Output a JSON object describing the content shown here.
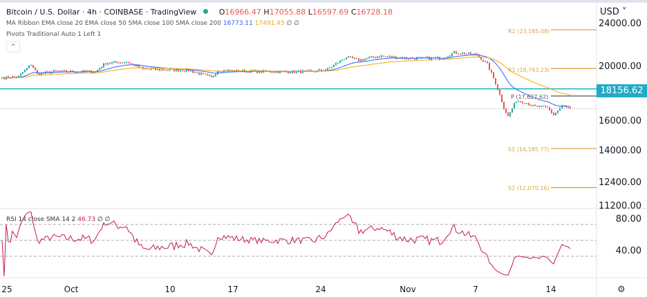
{
  "header": {
    "symbol_title": "Bitcoin / U.S. Dollar · 4h · COINBASE · TradingView",
    "ohlc": {
      "o_label": "O",
      "o": "16966.47",
      "h_label": "H",
      "h": "17055.88",
      "l_label": "L",
      "l": "16597.69",
      "c_label": "C",
      "c": "16728.18"
    },
    "ma_ribbon": {
      "label": "MA Ribbon EMA close 20 EMA close 50 SMA close 100 SMA close 200",
      "v1": "16773.11",
      "v2": "17491.45",
      "v3": "∅",
      "v4": "∅"
    },
    "pivots_label": "Pivots Traditional Auto 1 Left 1",
    "collapse_icon": "chevron-up-icon"
  },
  "price_axis": {
    "currency": "USD",
    "ticks": [
      "24000.00",
      "20000.00",
      "16000.00",
      "14000.00",
      "12400.00",
      "11200.00"
    ],
    "scale": "log",
    "line_price_label": "18156.62"
  },
  "pivots": {
    "r2": "R2 (23,185.08)",
    "r1": "R1 (19,743.23)",
    "p": "P (17,627.62)",
    "s1": "S1 (14,185.77)",
    "s2": "S2 (12,070.16)"
  },
  "rsi": {
    "label": "RSI 14 close SMA 14 2",
    "value": "46.73",
    "v2": "∅",
    "v3": "∅",
    "ticks": [
      "80.00",
      "40.00"
    ]
  },
  "time_axis": {
    "labels": [
      "25",
      "Oct",
      "10",
      "17",
      "24",
      "Nov",
      "7",
      "14"
    ]
  },
  "chart_data": {
    "type": "candlestick",
    "timeframe": "4h",
    "approx_close_path": [
      {
        "candle": 0,
        "price": 19000
      },
      {
        "candle": 8,
        "price": 19100
      },
      {
        "candle": 14,
        "price": 20100
      },
      {
        "candle": 17,
        "price": 19300
      },
      {
        "candle": 25,
        "price": 19500
      },
      {
        "candle": 45,
        "price": 19500
      },
      {
        "candle": 50,
        "price": 20200
      },
      {
        "candle": 60,
        "price": 20300
      },
      {
        "candle": 68,
        "price": 19700
      },
      {
        "candle": 90,
        "price": 19600
      },
      {
        "candle": 99,
        "price": 19150
      },
      {
        "candle": 101,
        "price": 19000
      },
      {
        "candle": 104,
        "price": 19600
      },
      {
        "candle": 125,
        "price": 19500
      },
      {
        "candle": 150,
        "price": 19500
      },
      {
        "candle": 157,
        "price": 19700
      },
      {
        "candle": 166,
        "price": 20700
      },
      {
        "candle": 172,
        "price": 20450
      },
      {
        "candle": 182,
        "price": 20800
      },
      {
        "candle": 195,
        "price": 20600
      },
      {
        "candle": 212,
        "price": 20600
      },
      {
        "candle": 218,
        "price": 21100
      },
      {
        "candle": 229,
        "price": 20900
      },
      {
        "candle": 234,
        "price": 20100
      },
      {
        "candle": 238,
        "price": 18600
      },
      {
        "candle": 242,
        "price": 16800
      },
      {
        "candle": 244,
        "price": 16200
      },
      {
        "candle": 248,
        "price": 17300
      },
      {
        "candle": 252,
        "price": 17200
      },
      {
        "candle": 256,
        "price": 16900
      },
      {
        "candle": 263,
        "price": 16800
      },
      {
        "candle": 266,
        "price": 16300
      },
      {
        "candle": 270,
        "price": 16900
      },
      {
        "candle": 274,
        "price": 16728
      }
    ],
    "horizontal_line": 18156.62,
    "pivot_levels": {
      "R2": 23185.08,
      "R1": 19743.23,
      "P": 17627.62,
      "S1": 14185.77,
      "S2": 12070.16
    },
    "rsi_levels": [
      70,
      50,
      30
    ],
    "colors": {
      "up": "#26a69a",
      "down": "#ef5350",
      "ema20": "#2962ff",
      "ema50": "#f7a600",
      "rsi": "#c2185b",
      "hline": "#22abc7",
      "pivot": "#d9a441"
    }
  }
}
